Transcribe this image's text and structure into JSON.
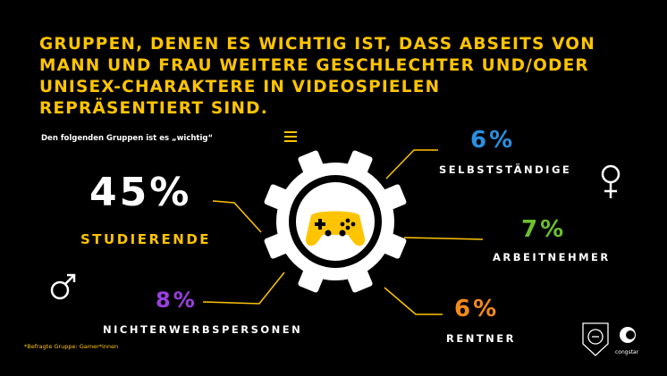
{
  "headline": {
    "lines": [
      "GRUPPEN, DENEN ES WICHTIG IST, DASS ABSEITS VON",
      "MANN UND FRAU WEITERE GESCHLECHTER UND/ODER",
      "UNISEX-CHARAKTERE IN VIDEOSPIELEN",
      "REPRÄSENTIERT SIND."
    ]
  },
  "subtitle": "Den folgenden Gruppen ist es „wichtig“",
  "footnote": "*Befragte Gruppe: Gamer*innen",
  "colors": {
    "background": "#000000",
    "accent_yellow": "#ffc400",
    "blue": "#2a8fe0",
    "green": "#6cbf2f",
    "purple": "#9a3fe0",
    "orange": "#f28a1a",
    "white": "#ffffff"
  },
  "icons": [
    "gamepad-icon",
    "gear-icon",
    "female-symbol-icon",
    "male-symbol-icon",
    "girls-gaming-logo",
    "congstar-logo"
  ],
  "logos": {
    "congstar": "congstar"
  },
  "chart_data": {
    "type": "bar",
    "title": "GRUPPEN, DENEN ES WICHTIG IST, DASS ABSEITS VON MANN UND FRAU WEITERE GESCHLECHTER UND/ODER UNISEX-CHARAKTERE IN VIDEOSPIELEN REPRÄSENTIERT SIND.",
    "categories": [
      "STUDIERENDE",
      "NICHTERWERBSPERSONEN",
      "SELBSTSTÄNDIGE",
      "ARBEITNEHMER",
      "RENTNER"
    ],
    "values": [
      45,
      8,
      6,
      7,
      6
    ],
    "value_labels": [
      "45%",
      "8%",
      "6%",
      "7%",
      "6%"
    ],
    "unit": "%",
    "colors": [
      "#ffffff",
      "#9a3fe0",
      "#2a8fe0",
      "#6cbf2f",
      "#f28a1a"
    ],
    "label_colors": [
      "#ffc400",
      "#ffffff",
      "#ffffff",
      "#ffffff",
      "#ffffff"
    ]
  }
}
